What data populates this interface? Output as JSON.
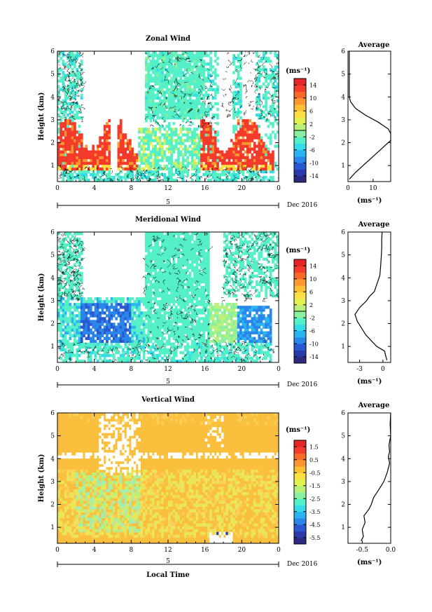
{
  "colors": {
    "jet": [
      "#2b2a80",
      "#2a3aa8",
      "#2a58d0",
      "#2a86e8",
      "#2ab4f0",
      "#33dce8",
      "#55f0c8",
      "#88f0a0",
      "#b8f07a",
      "#e2f050",
      "#fae040",
      "#fcc035",
      "#fc9630",
      "#f86a2a",
      "#f43a2a",
      "#e4262a"
    ],
    "vertical_fill": "#fbbf3e",
    "vertical_fill_light": "#fdd05a",
    "vertical_streak": "#e9e65a",
    "vertical_streak_cyan": "#a4ecb0",
    "zonal_red": "#f43a2a",
    "zonal_orange": "#fc9630",
    "mint": "#55f0c8",
    "contour": "#000000"
  },
  "panels": [
    {
      "title": "Zonal Wind",
      "ylabel": "Height (km)",
      "xlabel": "",
      "date_label": "Dec 2016",
      "day_label": "5",
      "x_ticks": [
        "0",
        "4",
        "8",
        "12",
        "16",
        "20",
        "0"
      ],
      "y_ticks": [
        "1",
        "2",
        "3",
        "4",
        "5",
        "6"
      ],
      "cb_unit": "(ms⁻¹)",
      "cb_ticks": [
        "14",
        "10",
        "6",
        "2",
        "-2",
        "-6",
        "-10",
        "-14"
      ],
      "cb_range": [
        -16,
        16
      ]
    },
    {
      "title": "Meridional Wind",
      "ylabel": "Height (km)",
      "xlabel": "",
      "date_label": "Dec 2016",
      "day_label": "5",
      "x_ticks": [
        "0",
        "4",
        "8",
        "12",
        "16",
        "20",
        "0"
      ],
      "y_ticks": [
        "1",
        "2",
        "3",
        "4",
        "5",
        "6"
      ],
      "cb_unit": "(ms⁻¹)",
      "cb_ticks": [
        "14",
        "10",
        "6",
        "2",
        "-2",
        "-6",
        "-10",
        "-14"
      ],
      "cb_range": [
        -16,
        16
      ]
    },
    {
      "title": "Vertical Wind",
      "ylabel": "Height (km)",
      "xlabel": "Local Time",
      "date_label": "Dec 2016",
      "day_label": "5",
      "x_ticks": [
        "0",
        "4",
        "8",
        "12",
        "16",
        "20",
        "0"
      ],
      "y_ticks": [
        "1",
        "2",
        "3",
        "4",
        "5",
        "6"
      ],
      "cb_unit": "(ms⁻¹)",
      "cb_ticks": [
        "1.5",
        "0.5",
        "-0.5",
        "-1.5",
        "-2.5",
        "-3.5",
        "-4.5",
        "-5.5"
      ],
      "cb_range": [
        -6,
        2
      ]
    }
  ],
  "chart_data": [
    {
      "type": "heatmap",
      "title": "Zonal Wind",
      "ylabel": "Height (km)",
      "x_range": [
        0,
        24
      ],
      "ylim": [
        0.3,
        6
      ],
      "zlim": [
        -16,
        16
      ],
      "zunit": "(ms⁻¹)",
      "date": "Dec 2016",
      "day": "5"
    },
    {
      "type": "line",
      "title": "Average",
      "xlabel": "(ms⁻¹)",
      "x_ticks": [
        "0",
        "10"
      ],
      "xlim": [
        0,
        17
      ],
      "ylim": [
        0.3,
        6
      ],
      "y_ticks": [
        "1",
        "2",
        "3",
        "4",
        "5",
        "6"
      ],
      "series": [
        {
          "x": [
            0.5,
            3,
            6,
            9,
            12,
            15,
            17,
            17,
            16,
            12,
            7,
            3,
            1,
            0.5,
            0.5,
            0.5,
            0.5,
            0.5
          ],
          "y": [
            0.4,
            0.7,
            1.0,
            1.3,
            1.6,
            1.9,
            2.1,
            2.4,
            2.6,
            2.9,
            3.2,
            3.5,
            3.8,
            4.0,
            4.5,
            5.0,
            5.5,
            6.0
          ]
        }
      ]
    },
    {
      "type": "heatmap",
      "title": "Meridional Wind",
      "ylabel": "Height (km)",
      "x_range": [
        0,
        24
      ],
      "ylim": [
        0.3,
        6
      ],
      "zlim": [
        -16,
        16
      ],
      "zunit": "(ms⁻¹)",
      "date": "Dec 2016",
      "day": "5"
    },
    {
      "type": "line",
      "title": "Average",
      "xlabel": "(ms⁻¹)",
      "x_ticks": [
        "-3",
        "0"
      ],
      "xlim": [
        -4.5,
        1
      ],
      "ylim": [
        0.3,
        6
      ],
      "y_ticks": [
        "1",
        "2",
        "3",
        "4",
        "5",
        "6"
      ],
      "series": [
        {
          "x": [
            0.5,
            0.2,
            -0.8,
            -2.2,
            -3.3,
            -3.6,
            -3.0,
            -2.1,
            -1.7,
            -1.1,
            -0.8,
            -0.4,
            -0.3,
            -0.2,
            -0.15,
            -0.15,
            -0.1
          ],
          "y": [
            0.4,
            0.8,
            1.0,
            1.5,
            2.1,
            2.4,
            2.7,
            3.0,
            3.2,
            3.4,
            3.7,
            4.1,
            4.5,
            5.0,
            5.3,
            5.7,
            6.0
          ]
        }
      ]
    },
    {
      "type": "heatmap",
      "title": "Vertical Wind",
      "ylabel": "Height (km)",
      "xlabel": "Local Time",
      "x_range": [
        0,
        24
      ],
      "ylim": [
        0.3,
        6
      ],
      "zlim": [
        -6,
        2
      ],
      "zunit": "(ms⁻¹)",
      "date": "Dec 2016",
      "day": "5"
    },
    {
      "type": "line",
      "title": "Average",
      "xlabel": "(ms⁻¹)",
      "x_ticks": [
        "-0.5",
        "0.0"
      ],
      "xlim": [
        -0.75,
        0
      ],
      "ylim": [
        0.3,
        6
      ],
      "y_ticks": [
        "1",
        "2",
        "3",
        "4",
        "5",
        "6"
      ],
      "series": [
        {
          "x": [
            -0.52,
            -0.48,
            -0.5,
            -0.45,
            -0.47,
            -0.38,
            -0.34,
            -0.3,
            -0.22,
            -0.12,
            -0.06,
            -0.02,
            -0.04,
            -0.02,
            -0.03,
            0.0,
            -0.01,
            0.0
          ],
          "y": [
            0.4,
            0.6,
            0.9,
            1.2,
            1.5,
            1.8,
            2.0,
            2.3,
            2.6,
            3.0,
            3.4,
            3.8,
            4.1,
            4.3,
            4.6,
            5.0,
            5.5,
            6.0
          ]
        }
      ]
    }
  ]
}
